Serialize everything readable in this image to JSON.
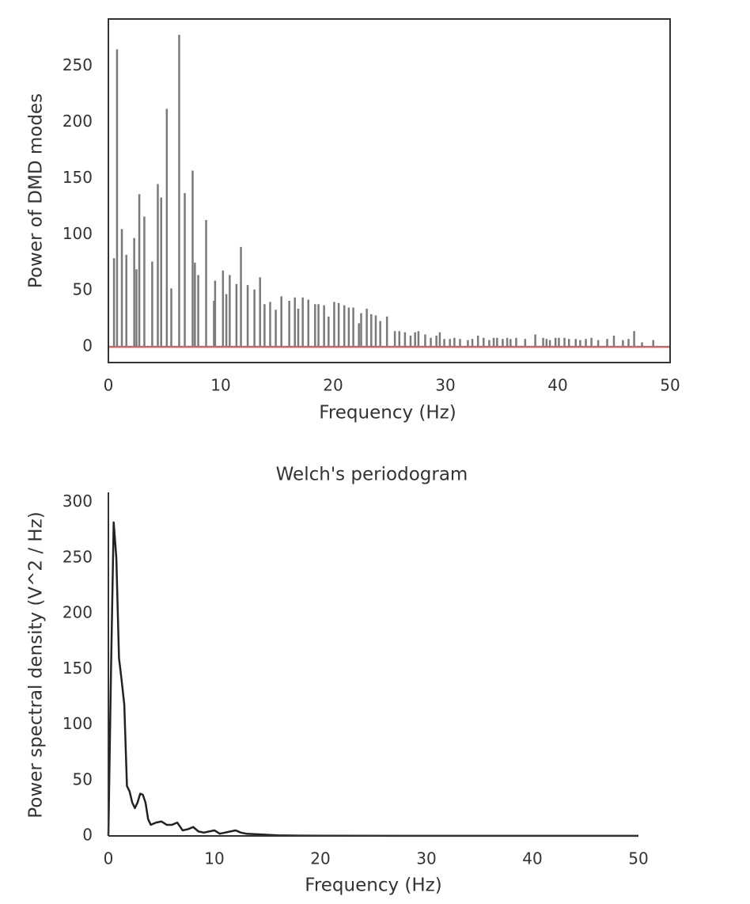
{
  "chart_data": [
    {
      "type": "stem",
      "xlabel": "Frequency (Hz)",
      "ylabel": "Power of DMD modes",
      "x": [
        0.5,
        0.77,
        1.2,
        1.6,
        2.3,
        2.5,
        2.75,
        3.2,
        3.9,
        4.4,
        4.7,
        5.2,
        5.6,
        6.3,
        6.8,
        7.5,
        7.7,
        8.0,
        8.7,
        9.4,
        9.5,
        10.2,
        10.5,
        10.8,
        11.4,
        11.8,
        12.4,
        13.0,
        13.5,
        13.9,
        14.4,
        14.9,
        15.4,
        16.1,
        16.6,
        16.9,
        17.3,
        17.8,
        18.4,
        18.7,
        19.2,
        19.6,
        20.1,
        20.5,
        21.0,
        21.4,
        21.8,
        22.3,
        22.5,
        23.0,
        23.4,
        23.8,
        24.2,
        24.8,
        25.5,
        25.9,
        26.4,
        26.9,
        27.3,
        27.6,
        28.2,
        28.7,
        29.2,
        29.5,
        29.9,
        30.4,
        30.8,
        31.3,
        32.0,
        32.4,
        32.9,
        33.4,
        33.9,
        34.3,
        34.6,
        35.1,
        35.5,
        35.8,
        36.3,
        37.1,
        38.0,
        38.7,
        39.0,
        39.3,
        39.8,
        40.1,
        40.6,
        41.0,
        41.6,
        42.0,
        42.5,
        43.0,
        43.6,
        44.4,
        45.0,
        45.8,
        46.3,
        46.8,
        47.5,
        48.5
      ],
      "values": [
        79,
        265,
        105,
        82,
        97,
        69,
        136,
        116,
        76,
        145,
        133,
        212,
        52,
        278,
        137,
        157,
        75,
        64,
        113,
        41,
        59,
        68,
        47,
        64,
        56,
        89,
        55,
        51,
        62,
        38,
        40,
        33,
        45,
        41,
        44,
        34,
        44,
        42,
        38,
        38,
        37,
        27,
        40,
        39,
        37,
        35,
        35,
        21,
        30,
        34,
        29,
        28,
        23,
        27,
        14,
        14,
        13,
        10,
        13,
        14,
        11,
        8,
        10,
        13,
        7,
        7,
        8,
        7,
        6,
        7,
        10,
        8,
        6,
        8,
        8,
        7,
        8,
        7,
        8,
        7,
        11,
        8,
        7,
        6,
        8,
        8,
        8,
        7,
        7,
        6,
        7,
        8,
        6,
        7,
        10,
        6,
        7,
        14,
        4,
        6
      ],
      "color": "#7a7a7a",
      "baseline_color": "#d0625f",
      "xlim": [
        0,
        50
      ],
      "xticks": [
        0,
        10,
        20,
        30,
        40,
        50
      ],
      "ylim": [
        -14,
        292
      ],
      "yticks": [
        0,
        50,
        100,
        150,
        200,
        250
      ],
      "frame": "box"
    },
    {
      "type": "line",
      "title": "Welch's periodogram",
      "xlabel": "Frequency (Hz)",
      "ylabel": "Power spectral density (V^2 / Hz)",
      "x": [
        0,
        0.25,
        0.5,
        0.75,
        1,
        1.25,
        1.5,
        1.75,
        2,
        2.25,
        2.5,
        2.75,
        3,
        3.25,
        3.5,
        3.75,
        4,
        4.5,
        5,
        5.5,
        6,
        6.5,
        7,
        7.5,
        8,
        8.5,
        9,
        9.5,
        10,
        10.5,
        11,
        11.5,
        12,
        12.5,
        13,
        14,
        15,
        16,
        18,
        20,
        30,
        40,
        50
      ],
      "values": [
        0,
        150,
        282,
        250,
        160,
        140,
        118,
        45,
        40,
        30,
        25,
        30,
        38,
        37,
        30,
        15,
        10,
        12,
        13,
        10,
        10,
        12,
        5,
        6,
        8,
        4,
        3,
        4,
        5,
        2,
        3,
        4,
        5,
        3,
        2,
        1.5,
        1,
        0.5,
        0.3,
        0.2,
        0.1,
        0.1,
        0.05
      ],
      "color": "#222222",
      "xlim": [
        0,
        50
      ],
      "xticks": [
        0,
        10,
        20,
        30,
        40,
        50
      ],
      "ylim": [
        0,
        309
      ],
      "yticks": [
        0,
        50,
        100,
        150,
        200,
        250,
        300
      ],
      "frame": "left-bottom"
    }
  ]
}
